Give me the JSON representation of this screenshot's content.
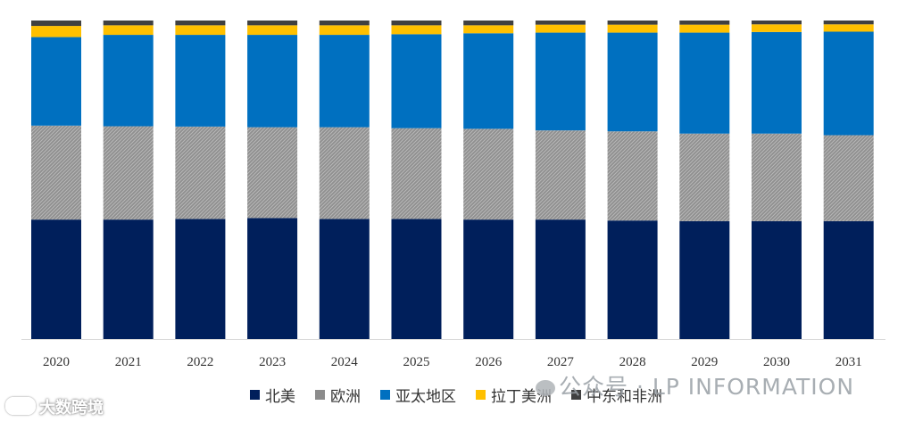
{
  "chart_data": {
    "type": "bar",
    "stacked": true,
    "normalized": true,
    "title": "",
    "xlabel": "",
    "ylabel": "",
    "ylim": [
      0,
      100
    ],
    "grid": false,
    "legend_position": "bottom",
    "categories": [
      "2020",
      "2021",
      "2022",
      "2023",
      "2024",
      "2025",
      "2026",
      "2027",
      "2028",
      "2029",
      "2030",
      "2031"
    ],
    "series": [
      {
        "name": "北美",
        "color": "#001f5b",
        "values": [
          37.5,
          37.5,
          37.7,
          38.0,
          37.7,
          37.7,
          37.5,
          37.5,
          37.2,
          37.0,
          37.0,
          37.0
        ]
      },
      {
        "name": "欧洲",
        "color": "#8c8c8c",
        "values": [
          29.5,
          29.3,
          29.0,
          28.5,
          28.8,
          28.5,
          28.5,
          28.0,
          28.0,
          27.5,
          27.5,
          27.0
        ]
      },
      {
        "name": "亚太地区",
        "color": "#0070c0",
        "values": [
          27.8,
          28.7,
          28.8,
          29.0,
          29.0,
          29.5,
          30.0,
          30.7,
          31.0,
          31.7,
          31.9,
          32.5
        ]
      },
      {
        "name": "拉丁美洲",
        "color": "#ffc000",
        "values": [
          3.5,
          3.0,
          3.0,
          3.0,
          3.0,
          2.8,
          2.5,
          2.5,
          2.5,
          2.5,
          2.4,
          2.3
        ]
      },
      {
        "name": "中东和非洲",
        "color": "#404040",
        "values": [
          1.7,
          1.5,
          1.5,
          1.5,
          1.5,
          1.5,
          1.5,
          1.3,
          1.3,
          1.3,
          1.2,
          1.2
        ]
      }
    ]
  },
  "watermarks": {
    "right": "公众号 · LP INFORMATION",
    "left": "大数跨境",
    "left_icon": "dashuju-logo-icon",
    "right_icon": "wechat-icon"
  }
}
